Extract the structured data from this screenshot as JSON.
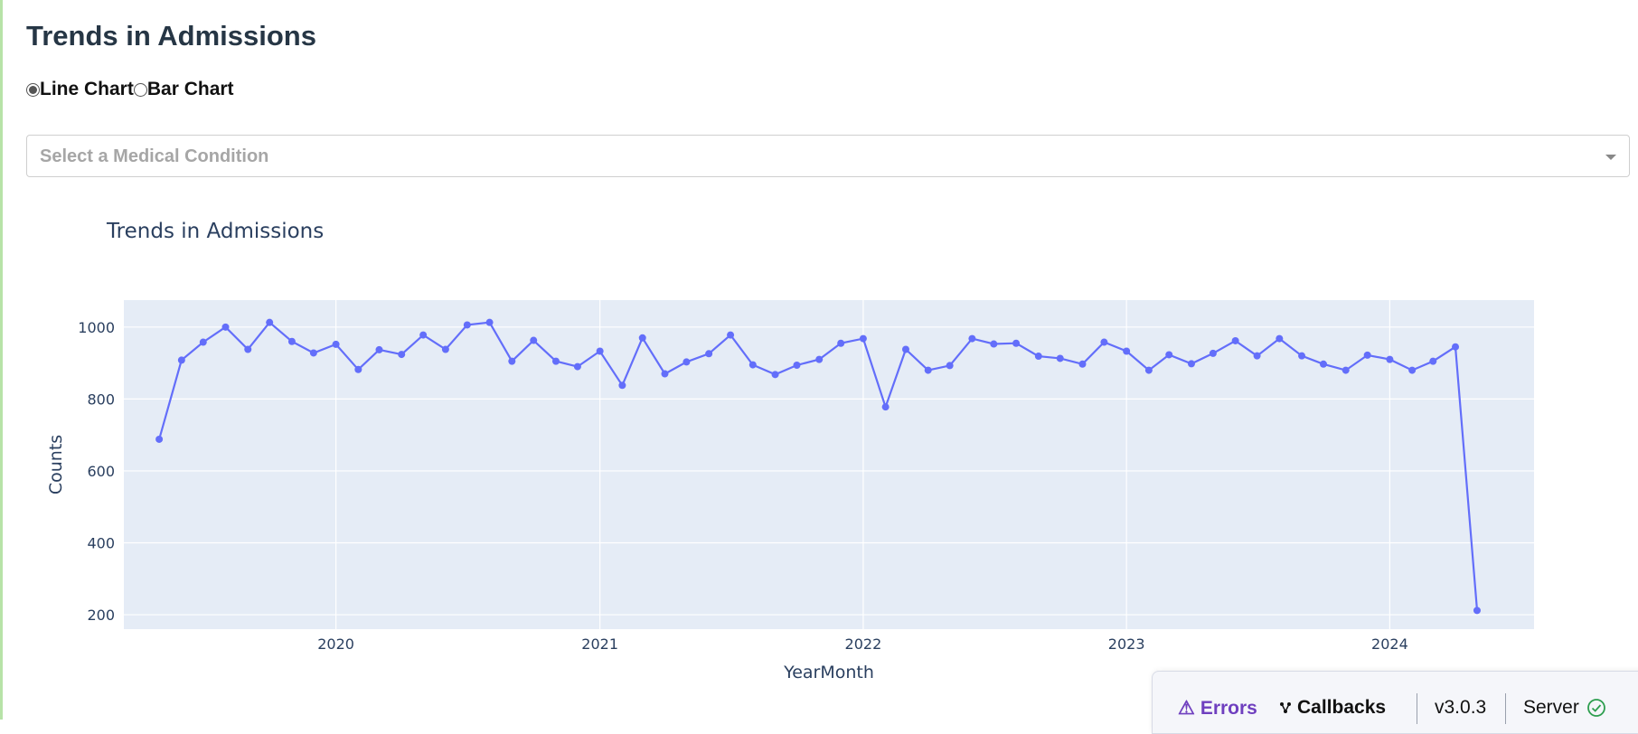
{
  "page": {
    "title": "Trends in Admissions"
  },
  "chart_type_selector": {
    "options": [
      {
        "label": "Line Chart",
        "selected": true
      },
      {
        "label": "Bar Chart",
        "selected": false
      }
    ]
  },
  "condition_dropdown": {
    "placeholder": "Select a Medical Condition"
  },
  "debug_bar": {
    "errors_label": "Errors",
    "callbacks_label": "Callbacks",
    "version": "v3.0.3",
    "server_label": "Server",
    "errors_icon": "warning-icon",
    "callbacks_icon": "graph-icon",
    "server_icon": "check-circle-icon",
    "errors_color": "#6f3fbf",
    "server_status_color": "#2e9e4f"
  },
  "chart_data": {
    "type": "line",
    "title": "Trends in Admissions",
    "xlabel": "YearMonth",
    "ylabel": "Counts",
    "line_color": "#636efa",
    "plot_bgcolor": "#e5ecf6",
    "grid": true,
    "x_tick_labels": [
      "2020",
      "2021",
      "2022",
      "2023",
      "2024"
    ],
    "y_ticks": [
      200,
      400,
      600,
      800,
      1000
    ],
    "ylim": [
      160,
      1075
    ],
    "xlim": [
      "2019-03-13",
      "2024-07-19"
    ],
    "x": [
      "2019-05",
      "2019-06",
      "2019-07",
      "2019-08",
      "2019-09",
      "2019-10",
      "2019-11",
      "2019-12",
      "2020-01",
      "2020-02",
      "2020-03",
      "2020-04",
      "2020-05",
      "2020-06",
      "2020-07",
      "2020-08",
      "2020-09",
      "2020-10",
      "2020-11",
      "2020-12",
      "2021-01",
      "2021-02",
      "2021-03",
      "2021-04",
      "2021-05",
      "2021-06",
      "2021-07",
      "2021-08",
      "2021-09",
      "2021-10",
      "2021-11",
      "2021-12",
      "2022-01",
      "2022-02",
      "2022-03",
      "2022-04",
      "2022-05",
      "2022-06",
      "2022-07",
      "2022-08",
      "2022-09",
      "2022-10",
      "2022-11",
      "2022-12",
      "2023-01",
      "2023-02",
      "2023-03",
      "2023-04",
      "2023-05",
      "2023-06",
      "2023-07",
      "2023-08",
      "2023-09",
      "2023-10",
      "2023-11",
      "2023-12",
      "2024-01",
      "2024-02",
      "2024-03",
      "2024-04",
      "2024-05"
    ],
    "y": [
      688,
      908,
      958,
      1000,
      938,
      1013,
      960,
      928,
      952,
      882,
      937,
      924,
      978,
      938,
      1006,
      1013,
      905,
      963,
      905,
      890,
      933,
      838,
      970,
      870,
      903,
      926,
      978,
      895,
      868,
      894,
      910,
      955,
      968,
      778,
      938,
      880,
      893,
      968,
      953,
      955,
      919,
      913,
      897,
      958,
      933,
      880,
      923,
      898,
      927,
      962,
      920,
      968,
      920,
      897,
      880,
      922,
      910,
      880,
      905,
      945,
      212
    ]
  }
}
